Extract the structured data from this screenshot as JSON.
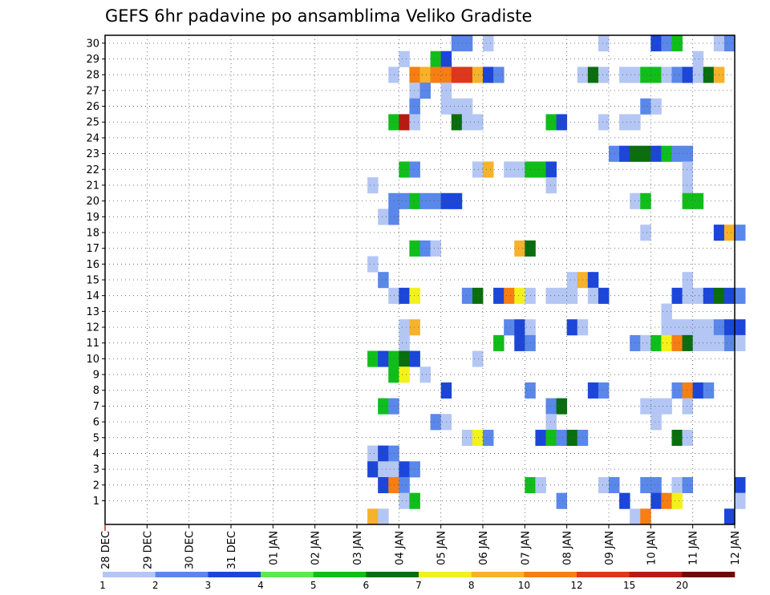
{
  "chart_data": {
    "type": "heatmap",
    "title": "GEFS 6hr padavine po ansamblima Veliko Gradiste",
    "x_tick_labels": [
      "28 DEC",
      "29 DEC",
      "30 DEC",
      "31 DEC",
      "01 JAN",
      "02 JAN",
      "03 JAN",
      "04 JAN",
      "05 JAN",
      "06 JAN",
      "07 JAN",
      "08 JAN",
      "09 JAN",
      "10 JAN",
      "11 JAN",
      "12 JAN"
    ],
    "x_steps_per_day": 4,
    "y_tick_labels": [
      "1",
      "2",
      "3",
      "4",
      "5",
      "6",
      "7",
      "8",
      "9",
      "10",
      "11",
      "12",
      "13",
      "14",
      "15",
      "16",
      "17",
      "18",
      "19",
      "20",
      "21",
      "22",
      "23",
      "24",
      "25",
      "26",
      "27",
      "28",
      "29",
      "30"
    ],
    "grid": true,
    "legend_placement": "bottom",
    "legend": {
      "labels": [
        "1",
        "2",
        "3",
        "4",
        "5",
        "6",
        "7",
        "8",
        "10",
        "12",
        "15",
        "20"
      ],
      "colors": [
        "#b4c6f4",
        "#5a87ea",
        "#1c46da",
        "#5ce852",
        "#10be1a",
        "#0a6e0f",
        "#f2f21a",
        "#f6b22a",
        "#f77e12",
        "#e0361c",
        "#b71a12",
        "#6e0a0a"
      ]
    },
    "cells": [
      {
        "member": 30,
        "col": 33,
        "level": 2
      },
      {
        "member": 30,
        "col": 34,
        "level": 2
      },
      {
        "member": 30,
        "col": 36,
        "level": 1
      },
      {
        "member": 30,
        "col": 47,
        "level": 1
      },
      {
        "member": 30,
        "col": 52,
        "level": 3
      },
      {
        "member": 30,
        "col": 53,
        "level": 2
      },
      {
        "member": 30,
        "col": 54,
        "level": 5
      },
      {
        "member": 30,
        "col": 58,
        "level": 1
      },
      {
        "member": 30,
        "col": 59,
        "level": 2
      },
      {
        "member": 29,
        "col": 28,
        "level": 1
      },
      {
        "member": 29,
        "col": 31,
        "level": 5
      },
      {
        "member": 29,
        "col": 32,
        "level": 3
      },
      {
        "member": 29,
        "col": 56,
        "level": 1
      },
      {
        "member": 28,
        "col": 27,
        "level": 1
      },
      {
        "member": 28,
        "col": 29,
        "level": 10
      },
      {
        "member": 28,
        "col": 30,
        "level": 8
      },
      {
        "member": 28,
        "col": 31,
        "level": 10
      },
      {
        "member": 28,
        "col": 32,
        "level": 10
      },
      {
        "member": 28,
        "col": 33,
        "level": 12
      },
      {
        "member": 28,
        "col": 34,
        "level": 12
      },
      {
        "member": 28,
        "col": 35,
        "level": 8
      },
      {
        "member": 28,
        "col": 36,
        "level": 3
      },
      {
        "member": 28,
        "col": 37,
        "level": 2
      },
      {
        "member": 28,
        "col": 45,
        "level": 1
      },
      {
        "member": 28,
        "col": 46,
        "level": 6
      },
      {
        "member": 28,
        "col": 47,
        "level": 1
      },
      {
        "member": 28,
        "col": 49,
        "level": 1
      },
      {
        "member": 28,
        "col": 50,
        "level": 1
      },
      {
        "member": 28,
        "col": 51,
        "level": 5
      },
      {
        "member": 28,
        "col": 52,
        "level": 5
      },
      {
        "member": 28,
        "col": 53,
        "level": 1
      },
      {
        "member": 28,
        "col": 54,
        "level": 2
      },
      {
        "member": 28,
        "col": 55,
        "level": 3
      },
      {
        "member": 28,
        "col": 56,
        "level": 1
      },
      {
        "member": 28,
        "col": 57,
        "level": 6
      },
      {
        "member": 28,
        "col": 58,
        "level": 8
      },
      {
        "member": 27,
        "col": 29,
        "level": 1
      },
      {
        "member": 27,
        "col": 30,
        "level": 2
      },
      {
        "member": 27,
        "col": 32,
        "level": 1
      },
      {
        "member": 26,
        "col": 29,
        "level": 2
      },
      {
        "member": 26,
        "col": 32,
        "level": 1
      },
      {
        "member": 26,
        "col": 33,
        "level": 1
      },
      {
        "member": 26,
        "col": 34,
        "level": 1
      },
      {
        "member": 26,
        "col": 51,
        "level": 2
      },
      {
        "member": 26,
        "col": 52,
        "level": 1
      },
      {
        "member": 25,
        "col": 27,
        "level": 5
      },
      {
        "member": 25,
        "col": 28,
        "level": 15
      },
      {
        "member": 25,
        "col": 29,
        "level": 1
      },
      {
        "member": 25,
        "col": 33,
        "level": 6
      },
      {
        "member": 25,
        "col": 34,
        "level": 1
      },
      {
        "member": 25,
        "col": 35,
        "level": 1
      },
      {
        "member": 25,
        "col": 42,
        "level": 5
      },
      {
        "member": 25,
        "col": 43,
        "level": 3
      },
      {
        "member": 25,
        "col": 47,
        "level": 1
      },
      {
        "member": 25,
        "col": 49,
        "level": 1
      },
      {
        "member": 25,
        "col": 50,
        "level": 1
      },
      {
        "member": 23,
        "col": 48,
        "level": 2
      },
      {
        "member": 23,
        "col": 49,
        "level": 3
      },
      {
        "member": 23,
        "col": 50,
        "level": 6
      },
      {
        "member": 23,
        "col": 51,
        "level": 6
      },
      {
        "member": 23,
        "col": 52,
        "level": 3
      },
      {
        "member": 23,
        "col": 53,
        "level": 5
      },
      {
        "member": 23,
        "col": 54,
        "level": 2
      },
      {
        "member": 23,
        "col": 55,
        "level": 2
      },
      {
        "member": 22,
        "col": 28,
        "level": 5
      },
      {
        "member": 22,
        "col": 29,
        "level": 2
      },
      {
        "member": 22,
        "col": 35,
        "level": 1
      },
      {
        "member": 22,
        "col": 36,
        "level": 8
      },
      {
        "member": 22,
        "col": 38,
        "level": 1
      },
      {
        "member": 22,
        "col": 39,
        "level": 1
      },
      {
        "member": 22,
        "col": 40,
        "level": 5
      },
      {
        "member": 22,
        "col": 41,
        "level": 5
      },
      {
        "member": 22,
        "col": 42,
        "level": 3
      },
      {
        "member": 22,
        "col": 55,
        "level": 1
      },
      {
        "member": 21,
        "col": 25,
        "level": 1
      },
      {
        "member": 21,
        "col": 42,
        "level": 1
      },
      {
        "member": 21,
        "col": 55,
        "level": 1
      },
      {
        "member": 20,
        "col": 27,
        "level": 2
      },
      {
        "member": 20,
        "col": 28,
        "level": 2
      },
      {
        "member": 20,
        "col": 29,
        "level": 5
      },
      {
        "member": 20,
        "col": 30,
        "level": 2
      },
      {
        "member": 20,
        "col": 31,
        "level": 2
      },
      {
        "member": 20,
        "col": 32,
        "level": 3
      },
      {
        "member": 20,
        "col": 33,
        "level": 3
      },
      {
        "member": 20,
        "col": 50,
        "level": 1
      },
      {
        "member": 20,
        "col": 51,
        "level": 5
      },
      {
        "member": 20,
        "col": 55,
        "level": 5
      },
      {
        "member": 20,
        "col": 56,
        "level": 5
      },
      {
        "member": 19,
        "col": 26,
        "level": 1
      },
      {
        "member": 19,
        "col": 27,
        "level": 2
      },
      {
        "member": 18,
        "col": 51,
        "level": 1
      },
      {
        "member": 18,
        "col": 58,
        "level": 3
      },
      {
        "member": 18,
        "col": 59,
        "level": 8
      },
      {
        "member": 18,
        "col": 60,
        "level": 2
      },
      {
        "member": 17,
        "col": 29,
        "level": 5
      },
      {
        "member": 17,
        "col": 30,
        "level": 2
      },
      {
        "member": 17,
        "col": 31,
        "level": 1
      },
      {
        "member": 17,
        "col": 39,
        "level": 8
      },
      {
        "member": 17,
        "col": 40,
        "level": 6
      },
      {
        "member": 16,
        "col": 25,
        "level": 1
      },
      {
        "member": 15,
        "col": 26,
        "level": 2
      },
      {
        "member": 15,
        "col": 44,
        "level": 1
      },
      {
        "member": 15,
        "col": 45,
        "level": 8
      },
      {
        "member": 15,
        "col": 46,
        "level": 3
      },
      {
        "member": 15,
        "col": 55,
        "level": 1
      },
      {
        "member": 14,
        "col": 27,
        "level": 1
      },
      {
        "member": 14,
        "col": 28,
        "level": 3
      },
      {
        "member": 14,
        "col": 29,
        "level": 7
      },
      {
        "member": 14,
        "col": 34,
        "level": 2
      },
      {
        "member": 14,
        "col": 35,
        "level": 6
      },
      {
        "member": 14,
        "col": 37,
        "level": 3
      },
      {
        "member": 14,
        "col": 38,
        "level": 10
      },
      {
        "member": 14,
        "col": 39,
        "level": 7
      },
      {
        "member": 14,
        "col": 40,
        "level": 1
      },
      {
        "member": 14,
        "col": 42,
        "level": 1
      },
      {
        "member": 14,
        "col": 43,
        "level": 1
      },
      {
        "member": 14,
        "col": 44,
        "level": 1
      },
      {
        "member": 14,
        "col": 46,
        "level": 1
      },
      {
        "member": 14,
        "col": 47,
        "level": 3
      },
      {
        "member": 14,
        "col": 54,
        "level": 3
      },
      {
        "member": 14,
        "col": 55,
        "level": 1
      },
      {
        "member": 14,
        "col": 56,
        "level": 1
      },
      {
        "member": 14,
        "col": 57,
        "level": 3
      },
      {
        "member": 14,
        "col": 58,
        "level": 6
      },
      {
        "member": 14,
        "col": 59,
        "level": 3
      },
      {
        "member": 14,
        "col": 60,
        "level": 2
      },
      {
        "member": 13,
        "col": 53,
        "level": 1
      },
      {
        "member": 12,
        "col": 28,
        "level": 1
      },
      {
        "member": 12,
        "col": 29,
        "level": 8
      },
      {
        "member": 12,
        "col": 38,
        "level": 2
      },
      {
        "member": 12,
        "col": 39,
        "level": 3
      },
      {
        "member": 12,
        "col": 40,
        "level": 1
      },
      {
        "member": 12,
        "col": 44,
        "level": 3
      },
      {
        "member": 12,
        "col": 45,
        "level": 1
      },
      {
        "member": 12,
        "col": 53,
        "level": 1
      },
      {
        "member": 12,
        "col": 54,
        "level": 1
      },
      {
        "member": 12,
        "col": 55,
        "level": 1
      },
      {
        "member": 12,
        "col": 56,
        "level": 1
      },
      {
        "member": 12,
        "col": 57,
        "level": 1
      },
      {
        "member": 12,
        "col": 58,
        "level": 2
      },
      {
        "member": 12,
        "col": 59,
        "level": 3
      },
      {
        "member": 12,
        "col": 60,
        "level": 3
      },
      {
        "member": 11,
        "col": 28,
        "level": 1
      },
      {
        "member": 11,
        "col": 37,
        "level": 5
      },
      {
        "member": 11,
        "col": 39,
        "level": 3
      },
      {
        "member": 11,
        "col": 40,
        "level": 2
      },
      {
        "member": 11,
        "col": 50,
        "level": 2
      },
      {
        "member": 11,
        "col": 51,
        "level": 1
      },
      {
        "member": 11,
        "col": 52,
        "level": 5
      },
      {
        "member": 11,
        "col": 53,
        "level": 7
      },
      {
        "member": 11,
        "col": 54,
        "level": 10
      },
      {
        "member": 11,
        "col": 55,
        "level": 6
      },
      {
        "member": 11,
        "col": 56,
        "level": 1
      },
      {
        "member": 11,
        "col": 57,
        "level": 1
      },
      {
        "member": 11,
        "col": 58,
        "level": 1
      },
      {
        "member": 11,
        "col": 59,
        "level": 2
      },
      {
        "member": 11,
        "col": 60,
        "level": 1
      },
      {
        "member": 10,
        "col": 25,
        "level": 5
      },
      {
        "member": 10,
        "col": 26,
        "level": 3
      },
      {
        "member": 10,
        "col": 27,
        "level": 5
      },
      {
        "member": 10,
        "col": 28,
        "level": 6
      },
      {
        "member": 10,
        "col": 29,
        "level": 3
      },
      {
        "member": 10,
        "col": 35,
        "level": 1
      },
      {
        "member": 9,
        "col": 27,
        "level": 5
      },
      {
        "member": 9,
        "col": 28,
        "level": 7
      },
      {
        "member": 9,
        "col": 30,
        "level": 1
      },
      {
        "member": 8,
        "col": 32,
        "level": 3
      },
      {
        "member": 8,
        "col": 40,
        "level": 2
      },
      {
        "member": 8,
        "col": 46,
        "level": 3
      },
      {
        "member": 8,
        "col": 47,
        "level": 2
      },
      {
        "member": 8,
        "col": 54,
        "level": 2
      },
      {
        "member": 8,
        "col": 55,
        "level": 10
      },
      {
        "member": 8,
        "col": 56,
        "level": 3
      },
      {
        "member": 8,
        "col": 57,
        "level": 2
      },
      {
        "member": 7,
        "col": 26,
        "level": 5
      },
      {
        "member": 7,
        "col": 27,
        "level": 2
      },
      {
        "member": 7,
        "col": 42,
        "level": 2
      },
      {
        "member": 7,
        "col": 43,
        "level": 6
      },
      {
        "member": 7,
        "col": 51,
        "level": 1
      },
      {
        "member": 7,
        "col": 52,
        "level": 1
      },
      {
        "member": 7,
        "col": 53,
        "level": 1
      },
      {
        "member": 7,
        "col": 55,
        "level": 1
      },
      {
        "member": 6,
        "col": 31,
        "level": 2
      },
      {
        "member": 6,
        "col": 32,
        "level": 1
      },
      {
        "member": 6,
        "col": 42,
        "level": 1
      },
      {
        "member": 6,
        "col": 52,
        "level": 1
      },
      {
        "member": 5,
        "col": 34,
        "level": 1
      },
      {
        "member": 5,
        "col": 35,
        "level": 7
      },
      {
        "member": 5,
        "col": 36,
        "level": 2
      },
      {
        "member": 5,
        "col": 41,
        "level": 3
      },
      {
        "member": 5,
        "col": 42,
        "level": 5
      },
      {
        "member": 5,
        "col": 43,
        "level": 2
      },
      {
        "member": 5,
        "col": 44,
        "level": 6
      },
      {
        "member": 5,
        "col": 45,
        "level": 2
      },
      {
        "member": 5,
        "col": 54,
        "level": 6
      },
      {
        "member": 5,
        "col": 55,
        "level": 1
      },
      {
        "member": 4,
        "col": 25,
        "level": 1
      },
      {
        "member": 4,
        "col": 26,
        "level": 3
      },
      {
        "member": 4,
        "col": 27,
        "level": 2
      },
      {
        "member": 3,
        "col": 25,
        "level": 3
      },
      {
        "member": 3,
        "col": 26,
        "level": 1
      },
      {
        "member": 3,
        "col": 27,
        "level": 1
      },
      {
        "member": 3,
        "col": 28,
        "level": 3
      },
      {
        "member": 3,
        "col": 29,
        "level": 2
      },
      {
        "member": 2,
        "col": 26,
        "level": 3
      },
      {
        "member": 2,
        "col": 27,
        "level": 10
      },
      {
        "member": 2,
        "col": 28,
        "level": 2
      },
      {
        "member": 2,
        "col": 40,
        "level": 5
      },
      {
        "member": 2,
        "col": 41,
        "level": 1
      },
      {
        "member": 2,
        "col": 47,
        "level": 1
      },
      {
        "member": 2,
        "col": 48,
        "level": 2
      },
      {
        "member": 2,
        "col": 51,
        "level": 2
      },
      {
        "member": 2,
        "col": 52,
        "level": 2
      },
      {
        "member": 2,
        "col": 54,
        "level": 1
      },
      {
        "member": 2,
        "col": 55,
        "level": 2
      },
      {
        "member": 2,
        "col": 60,
        "level": 3
      },
      {
        "member": 1,
        "col": 28,
        "level": 1
      },
      {
        "member": 1,
        "col": 29,
        "level": 5
      },
      {
        "member": 1,
        "col": 43,
        "level": 2
      },
      {
        "member": 1,
        "col": 49,
        "level": 3
      },
      {
        "member": 1,
        "col": 52,
        "level": 3
      },
      {
        "member": 1,
        "col": 53,
        "level": 10
      },
      {
        "member": 1,
        "col": 54,
        "level": 7
      },
      {
        "member": 1,
        "col": 60,
        "level": 1
      },
      {
        "member": 0,
        "col": 25,
        "level": 8
      },
      {
        "member": 0,
        "col": 26,
        "level": 1
      },
      {
        "member": 0,
        "col": 50,
        "level": 1
      },
      {
        "member": 0,
        "col": 51,
        "level": 10
      },
      {
        "member": 0,
        "col": 59,
        "level": 3
      }
    ]
  }
}
